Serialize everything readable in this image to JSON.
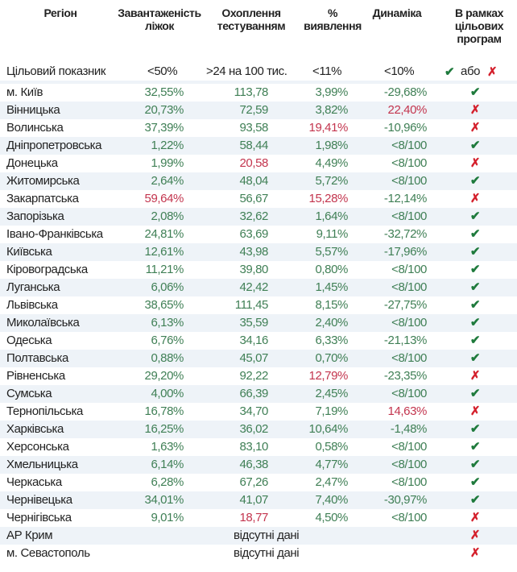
{
  "colors": {
    "ok": "#3f7f55",
    "bad": "#c3354e",
    "check": "#1e7a3c",
    "cross": "#d4202c"
  },
  "header": {
    "region": "Регіон",
    "beds": [
      "Завантаженість",
      "ліжок"
    ],
    "testing": [
      "Охоплення",
      "тестуванням"
    ],
    "detection": [
      "%",
      "виявлення"
    ],
    "dynamics": "Динаміка",
    "programs": [
      "В рамках",
      "цільових",
      "програм"
    ]
  },
  "target": {
    "label": "Цільовий показник",
    "beds": "<50%",
    "testing": ">24 на 100 тис.",
    "detection": "<11%",
    "dynamics": "<10%",
    "or": "або",
    "check_icon": "check-icon",
    "cross_icon": "cross-icon"
  },
  "rows": [
    {
      "region": "м. Київ",
      "beds": "32,55%",
      "beds_s": "ok",
      "testing": "113,78",
      "testing_s": "ok",
      "detection": "3,99%",
      "detection_s": "ok",
      "dynamics": "-29,68%",
      "dynamics_s": "ok",
      "program": "yes"
    },
    {
      "region": "Вінницька",
      "beds": "20,73%",
      "beds_s": "ok",
      "testing": "72,59",
      "testing_s": "ok",
      "detection": "3,82%",
      "detection_s": "ok",
      "dynamics": "22,40%",
      "dynamics_s": "bad",
      "program": "no"
    },
    {
      "region": "Волинська",
      "beds": "37,39%",
      "beds_s": "ok",
      "testing": "93,58",
      "testing_s": "ok",
      "detection": "19,41%",
      "detection_s": "bad",
      "dynamics": "-10,96%",
      "dynamics_s": "ok",
      "program": "no"
    },
    {
      "region": "Дніпропетровська",
      "beds": "1,22%",
      "beds_s": "ok",
      "testing": "58,44",
      "testing_s": "ok",
      "detection": "1,98%",
      "detection_s": "ok",
      "dynamics": "<8/100",
      "dynamics_s": "ok",
      "program": "yes"
    },
    {
      "region": "Донецька",
      "beds": "1,99%",
      "beds_s": "ok",
      "testing": "20,58",
      "testing_s": "bad",
      "detection": "4,49%",
      "detection_s": "ok",
      "dynamics": "<8/100",
      "dynamics_s": "ok",
      "program": "no"
    },
    {
      "region": "Житомирська",
      "beds": "2,64%",
      "beds_s": "ok",
      "testing": "48,04",
      "testing_s": "ok",
      "detection": "5,72%",
      "detection_s": "ok",
      "dynamics": "<8/100",
      "dynamics_s": "ok",
      "program": "yes"
    },
    {
      "region": "Закарпатська",
      "beds": "59,64%",
      "beds_s": "bad",
      "testing": "56,67",
      "testing_s": "ok",
      "detection": "15,28%",
      "detection_s": "bad",
      "dynamics": "-12,14%",
      "dynamics_s": "ok",
      "program": "no"
    },
    {
      "region": "Запорізька",
      "beds": "2,08%",
      "beds_s": "ok",
      "testing": "32,62",
      "testing_s": "ok",
      "detection": "1,64%",
      "detection_s": "ok",
      "dynamics": "<8/100",
      "dynamics_s": "ok",
      "program": "yes"
    },
    {
      "region": "Івано-Франківська",
      "beds": "24,81%",
      "beds_s": "ok",
      "testing": "63,69",
      "testing_s": "ok",
      "detection": "9,11%",
      "detection_s": "ok",
      "dynamics": "-32,72%",
      "dynamics_s": "ok",
      "program": "yes"
    },
    {
      "region": "Київська",
      "beds": "12,61%",
      "beds_s": "ok",
      "testing": "43,98",
      "testing_s": "ok",
      "detection": "5,57%",
      "detection_s": "ok",
      "dynamics": "-17,96%",
      "dynamics_s": "ok",
      "program": "yes"
    },
    {
      "region": "Кіровоградська",
      "beds": "11,21%",
      "beds_s": "ok",
      "testing": "39,80",
      "testing_s": "ok",
      "detection": "0,80%",
      "detection_s": "ok",
      "dynamics": "<8/100",
      "dynamics_s": "ok",
      "program": "yes"
    },
    {
      "region": "Луганська",
      "beds": "6,06%",
      "beds_s": "ok",
      "testing": "42,42",
      "testing_s": "ok",
      "detection": "1,45%",
      "detection_s": "ok",
      "dynamics": "<8/100",
      "dynamics_s": "ok",
      "program": "yes"
    },
    {
      "region": "Львівська",
      "beds": "38,65%",
      "beds_s": "ok",
      "testing": "111,45",
      "testing_s": "ok",
      "detection": "8,15%",
      "detection_s": "ok",
      "dynamics": "-27,75%",
      "dynamics_s": "ok",
      "program": "yes"
    },
    {
      "region": "Миколаївська",
      "beds": "6,13%",
      "beds_s": "ok",
      "testing": "35,59",
      "testing_s": "ok",
      "detection": "2,40%",
      "detection_s": "ok",
      "dynamics": "<8/100",
      "dynamics_s": "ok",
      "program": "yes"
    },
    {
      "region": "Одеська",
      "beds": "6,76%",
      "beds_s": "ok",
      "testing": "34,16",
      "testing_s": "ok",
      "detection": "6,33%",
      "detection_s": "ok",
      "dynamics": "-21,13%",
      "dynamics_s": "ok",
      "program": "yes"
    },
    {
      "region": "Полтавська",
      "beds": "0,88%",
      "beds_s": "ok",
      "testing": "45,07",
      "testing_s": "ok",
      "detection": "0,70%",
      "detection_s": "ok",
      "dynamics": "<8/100",
      "dynamics_s": "ok",
      "program": "yes"
    },
    {
      "region": "Рівненська",
      "beds": "29,20%",
      "beds_s": "ok",
      "testing": "92,22",
      "testing_s": "ok",
      "detection": "12,79%",
      "detection_s": "bad",
      "dynamics": "-23,35%",
      "dynamics_s": "ok",
      "program": "no"
    },
    {
      "region": "Сумська",
      "beds": "4,00%",
      "beds_s": "ok",
      "testing": "66,39",
      "testing_s": "ok",
      "detection": "2,45%",
      "detection_s": "ok",
      "dynamics": "<8/100",
      "dynamics_s": "ok",
      "program": "yes"
    },
    {
      "region": "Тернопільська",
      "beds": "16,78%",
      "beds_s": "ok",
      "testing": "34,70",
      "testing_s": "ok",
      "detection": "7,19%",
      "detection_s": "ok",
      "dynamics": "14,63%",
      "dynamics_s": "bad",
      "program": "no"
    },
    {
      "region": "Харківська",
      "beds": "16,25%",
      "beds_s": "ok",
      "testing": "36,02",
      "testing_s": "ok",
      "detection": "10,64%",
      "detection_s": "ok",
      "dynamics": "-1,48%",
      "dynamics_s": "ok",
      "program": "yes"
    },
    {
      "region": "Херсонська",
      "beds": "1,63%",
      "beds_s": "ok",
      "testing": "83,10",
      "testing_s": "ok",
      "detection": "0,58%",
      "detection_s": "ok",
      "dynamics": "<8/100",
      "dynamics_s": "ok",
      "program": "yes"
    },
    {
      "region": "Хмельницька",
      "beds": "6,14%",
      "beds_s": "ok",
      "testing": "46,38",
      "testing_s": "ok",
      "detection": "4,77%",
      "detection_s": "ok",
      "dynamics": "<8/100",
      "dynamics_s": "ok",
      "program": "yes"
    },
    {
      "region": "Черкаська",
      "beds": "6,28%",
      "beds_s": "ok",
      "testing": "67,26",
      "testing_s": "ok",
      "detection": "2,47%",
      "detection_s": "ok",
      "dynamics": "<8/100",
      "dynamics_s": "ok",
      "program": "yes"
    },
    {
      "region": "Чернівецька",
      "beds": "34,01%",
      "beds_s": "ok",
      "testing": "41,07",
      "testing_s": "ok",
      "detection": "7,40%",
      "detection_s": "ok",
      "dynamics": "-30,97%",
      "dynamics_s": "ok",
      "program": "yes"
    },
    {
      "region": "Чернігівська",
      "beds": "9,01%",
      "beds_s": "ok",
      "testing": "18,77",
      "testing_s": "bad",
      "detection": "4,50%",
      "detection_s": "ok",
      "dynamics": "<8/100",
      "dynamics_s": "ok",
      "program": "no"
    },
    {
      "region": "АР Крим",
      "no_data": "відсутні дані",
      "program": "no"
    },
    {
      "region": "м. Севастополь",
      "no_data": "відсутні дані",
      "program": "no"
    }
  ]
}
